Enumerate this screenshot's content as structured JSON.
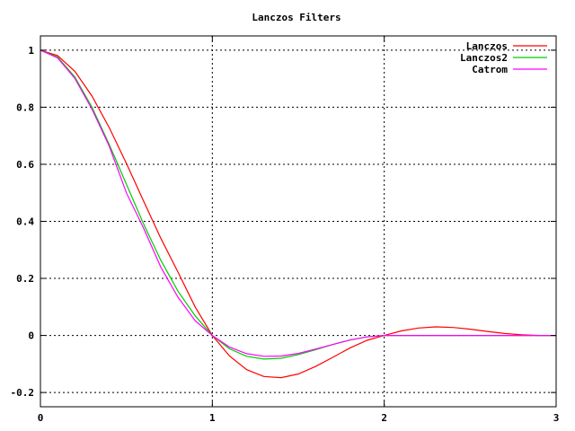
{
  "chart_data": {
    "type": "line",
    "title": "Lanczos Filters",
    "xlabel": "",
    "ylabel": "",
    "xlim": [
      0,
      3
    ],
    "ylim": [
      -0.25,
      1.05
    ],
    "grid": true,
    "legend_position": "top-right",
    "x_ticks": [
      0,
      1,
      2,
      3
    ],
    "x_tick_labels": [
      "0",
      "1",
      "2",
      "3"
    ],
    "y_ticks": [
      -0.2,
      0,
      0.2,
      0.4,
      0.6,
      0.8,
      1
    ],
    "y_tick_labels": [
      "-0.2",
      "0",
      "0.2",
      "0.4",
      "0.6",
      "0.8",
      "1"
    ],
    "series": [
      {
        "name": "Lanczos",
        "color": "#ff0000",
        "x": [
          0,
          0.1,
          0.2,
          0.3,
          0.4,
          0.5,
          0.6,
          0.7,
          0.8,
          0.9,
          1.0,
          1.1,
          1.2,
          1.3,
          1.4,
          1.5,
          1.6,
          1.7,
          1.8,
          1.9,
          2.0,
          2.1,
          2.2,
          2.3,
          2.4,
          2.5,
          2.6,
          2.7,
          2.8,
          2.9,
          3.0
        ],
        "values": [
          1.0,
          0.981,
          0.926,
          0.839,
          0.729,
          0.603,
          0.471,
          0.341,
          0.222,
          0.1,
          0.0,
          -0.072,
          -0.12,
          -0.144,
          -0.148,
          -0.135,
          -0.109,
          -0.077,
          -0.044,
          -0.017,
          0.0,
          0.016,
          0.026,
          0.03,
          0.028,
          0.022,
          0.014,
          0.007,
          0.002,
          0.0,
          0.0
        ]
      },
      {
        "name": "Lanczos2",
        "color": "#00cc00",
        "x": [
          0,
          0.1,
          0.2,
          0.3,
          0.4,
          0.5,
          0.6,
          0.7,
          0.8,
          0.9,
          1.0,
          1.1,
          1.2,
          1.3,
          1.4,
          1.5,
          1.6,
          1.7,
          1.8,
          1.9,
          2.0,
          2.2,
          2.4,
          2.6,
          2.8,
          3.0
        ],
        "values": [
          1.0,
          0.976,
          0.906,
          0.8,
          0.67,
          0.53,
          0.391,
          0.264,
          0.155,
          0.069,
          0.0,
          -0.047,
          -0.073,
          -0.083,
          -0.08,
          -0.067,
          -0.05,
          -0.032,
          -0.016,
          -0.005,
          0.0,
          0.0,
          0.0,
          0.0,
          0.0,
          0.0
        ]
      },
      {
        "name": "Catrom",
        "color": "#ff00ff",
        "x": [
          0,
          0.1,
          0.2,
          0.3,
          0.4,
          0.5,
          0.6,
          0.7,
          0.8,
          0.9,
          1.0,
          1.1,
          1.2,
          1.3,
          1.4,
          1.5,
          1.6,
          1.7,
          1.8,
          1.9,
          2.0,
          2.2,
          2.4,
          2.6,
          2.8,
          3.0
        ],
        "values": [
          1.0,
          0.973,
          0.901,
          0.793,
          0.664,
          0.5,
          0.376,
          0.24,
          0.134,
          0.052,
          0.0,
          -0.041,
          -0.064,
          -0.073,
          -0.072,
          -0.063,
          -0.048,
          -0.032,
          -0.016,
          -0.005,
          0.0,
          0.0,
          0.0,
          0.0,
          0.0,
          0.0
        ]
      }
    ]
  }
}
